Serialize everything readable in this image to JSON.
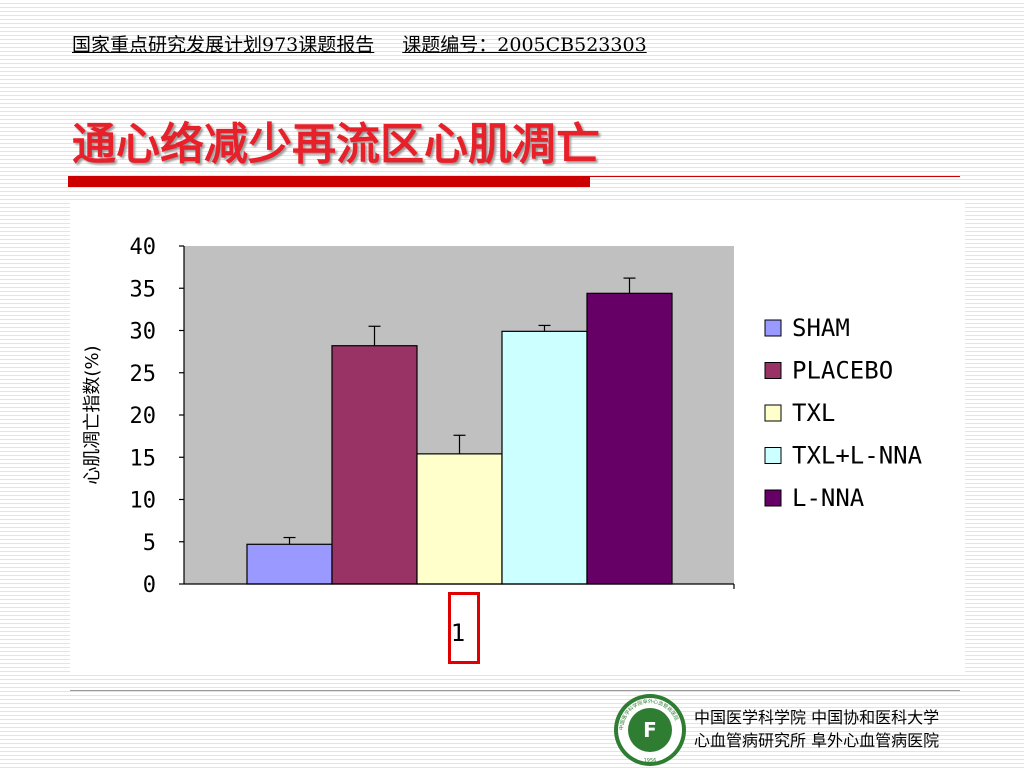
{
  "header": {
    "report_title": "国家重点研究发展计划973课题报告",
    "project_number": "课题编号：2005CB523303"
  },
  "slide_title": "通心络减少再流区心肌凋亡",
  "footer": {
    "line1": "中国医学科学院  中国协和医科大学",
    "line2": "心血管病研究所  阜外心血管病医院",
    "logo_text": "中国医学科学院阜外心血管病医院",
    "logo_center": "F",
    "logo_year": "1956"
  },
  "colors": {
    "title": "#e8202a",
    "accent_bar": "#cc0000",
    "plot_bg": "#c0c0c0"
  },
  "chart_data": {
    "type": "bar",
    "categories": [
      "1"
    ],
    "series": [
      {
        "name": "SHAM",
        "values": [
          4.7
        ],
        "error": [
          0.8
        ],
        "color": "#9999ff"
      },
      {
        "name": "PLACEBO",
        "values": [
          28.2
        ],
        "error": [
          2.3
        ],
        "color": "#993366"
      },
      {
        "name": "TXL",
        "values": [
          15.4
        ],
        "error": [
          2.2
        ],
        "color": "#ffffcc"
      },
      {
        "name": "TXL+L-NNA",
        "values": [
          29.9
        ],
        "error": [
          0.7
        ],
        "color": "#ccffff"
      },
      {
        "name": "L-NNA",
        "values": [
          34.4
        ],
        "error": [
          1.8
        ],
        "color": "#660066"
      }
    ],
    "ylabel": "心肌凋亡指数(%)",
    "xlabel": "",
    "ylim": [
      0,
      40
    ],
    "yticks": [
      "0",
      "5",
      "10",
      "15",
      "20",
      "25",
      "30",
      "35",
      "40"
    ],
    "grid": false,
    "legend_position": "right"
  }
}
